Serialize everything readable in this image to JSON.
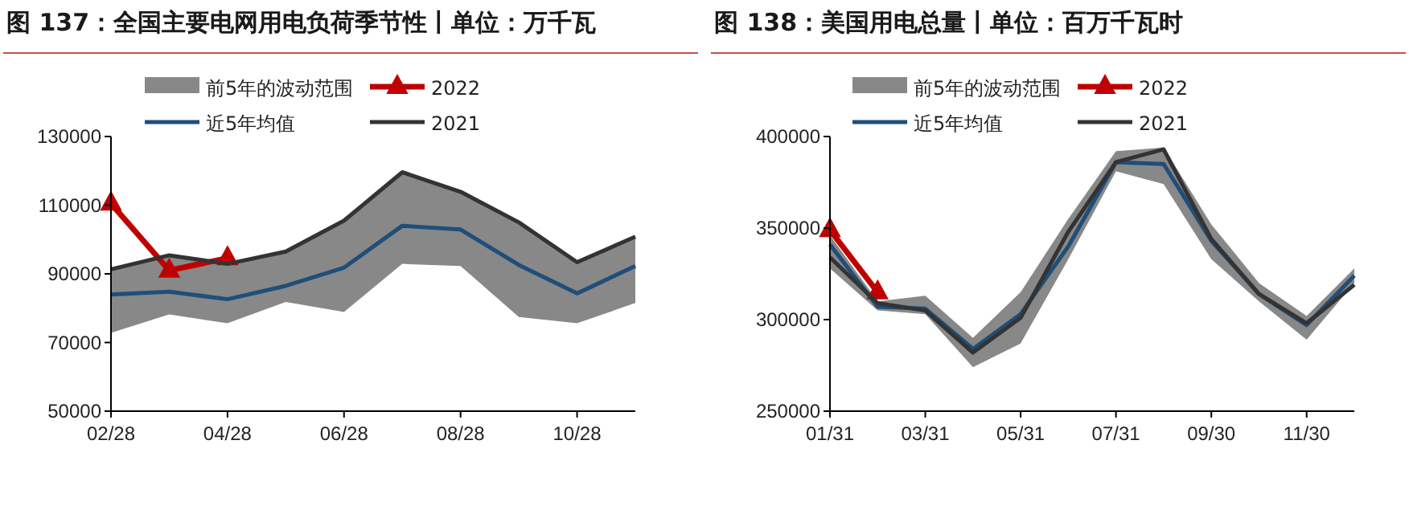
{
  "chart_data": [
    {
      "type": "line",
      "title": "图 137：全国主要电网用电负荷季节性丨单位：万千瓦",
      "categories": [
        "02/28",
        null,
        "04/28",
        null,
        "06/28",
        null,
        "08/28",
        null,
        "10/28",
        null
      ],
      "ylim": [
        50000,
        130000
      ],
      "yticks": [
        50000,
        70000,
        90000,
        110000,
        130000
      ],
      "grid": false,
      "legend": "top",
      "series": [
        {
          "name": "前5年的波动范围",
          "type": "area",
          "color": "#888888",
          "values": [
            null,
            null,
            null,
            null,
            null,
            null,
            null,
            null,
            null,
            null
          ]
        },
        {
          "name": "2022",
          "type": "line",
          "color": "#c00000",
          "marker": "triangle",
          "values": [
            110500,
            91000,
            94600,
            null,
            null,
            null,
            null,
            null,
            null,
            null
          ]
        },
        {
          "name": "近5年均值",
          "type": "line",
          "color": "#1f4e79",
          "marker": "none",
          "values": [
            84000,
            84800,
            82600,
            86500,
            91800,
            104000,
            102900,
            92600,
            84300,
            92300
          ],
          "lower": [
            72800,
            78200,
            75600,
            81800,
            78900,
            92900,
            92300,
            77400,
            75600,
            81500
          ],
          "upper": [
            91300,
            95400,
            92900,
            96500,
            105500,
            119600,
            113900,
            105000,
            93400,
            100800
          ]
        },
        {
          "name": "2021",
          "type": "line",
          "color": "#333333",
          "marker": "none",
          "values": [
            91300,
            95400,
            92900,
            96500,
            105500,
            119600,
            113900,
            105000,
            93400,
            100800
          ]
        }
      ]
    },
    {
      "type": "line",
      "title": "图 138：美国用电总量丨单位：百万千瓦时",
      "categories": [
        "01/31",
        null,
        "03/31",
        null,
        "05/31",
        null,
        "07/31",
        null,
        "09/30",
        null,
        "11/30",
        null
      ],
      "ylim": [
        250000,
        400000
      ],
      "yticks": [
        250000,
        300000,
        350000,
        400000
      ],
      "grid": false,
      "legend": "top",
      "series": [
        {
          "name": "前5年的波动范围",
          "type": "area",
          "color": "#888888",
          "values": [
            null,
            null,
            null,
            null,
            null,
            null,
            null,
            null,
            null,
            null,
            null,
            null
          ]
        },
        {
          "name": "2022",
          "type": "line",
          "color": "#c00000",
          "marker": "triangle",
          "values": [
            349000,
            315000,
            null,
            null,
            null,
            null,
            null,
            null,
            null,
            null,
            null,
            null
          ]
        },
        {
          "name": "近5年均值",
          "type": "line",
          "color": "#1f4e79",
          "marker": "none",
          "values": [
            341000,
            307000,
            306000,
            284000,
            303000,
            340000,
            386000,
            385000,
            343000,
            314000,
            297000,
            324000
          ],
          "lower": [
            328000,
            305000,
            303000,
            274000,
            287000,
            333000,
            381000,
            374000,
            333000,
            310000,
            289000,
            320000
          ],
          "upper": [
            346000,
            310000,
            313000,
            290000,
            315000,
            355000,
            392000,
            394000,
            352000,
            320000,
            302000,
            328000
          ]
        },
        {
          "name": "2021",
          "type": "line",
          "color": "#333333",
          "marker": "none",
          "values": [
            334000,
            309000,
            305000,
            282000,
            301000,
            348000,
            386000,
            393000,
            344000,
            314000,
            298000,
            319000
          ]
        }
      ]
    }
  ]
}
